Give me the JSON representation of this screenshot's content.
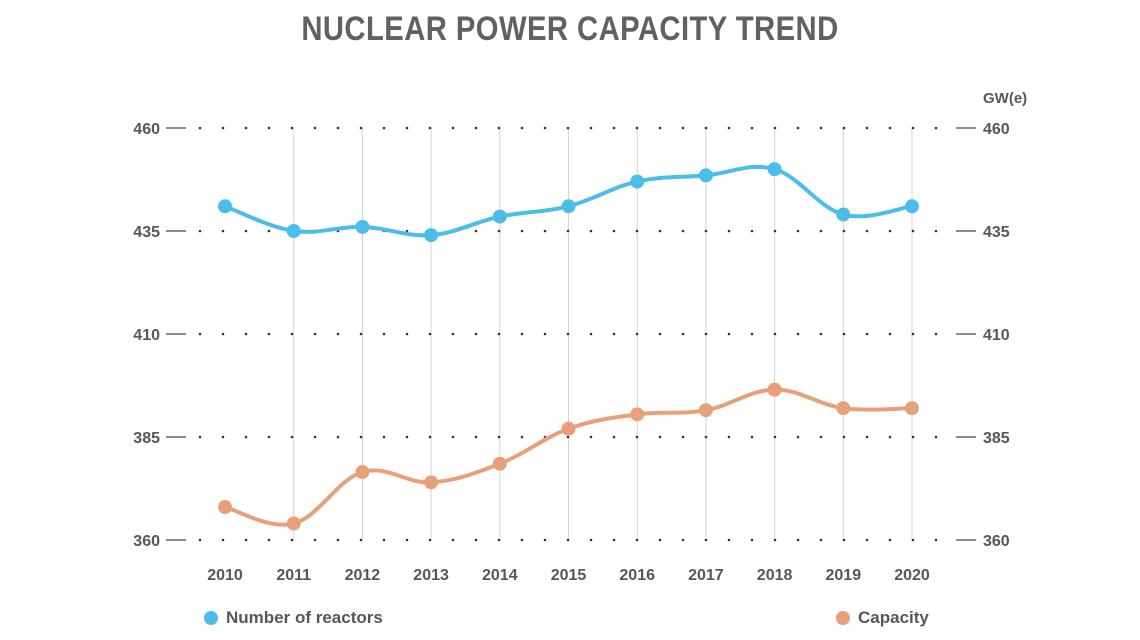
{
  "chart_data": {
    "type": "line",
    "title": "NUCLEAR POWER CAPACITY TREND",
    "categories": [
      "2010",
      "2011",
      "2012",
      "2013",
      "2014",
      "2015",
      "2016",
      "2017",
      "2018",
      "2019",
      "2020"
    ],
    "y_ticks": [
      "460",
      "435",
      "410",
      "385",
      "360"
    ],
    "y_ticks_right": [
      "460",
      "435",
      "410",
      "385",
      "360"
    ],
    "ylim": [
      360,
      460
    ],
    "y2_unit": "GW(e)",
    "series": [
      {
        "name": "Number of reactors",
        "color": "#4cbde9",
        "values": [
          441,
          435,
          436,
          434,
          438.5,
          441,
          447,
          448.5,
          450,
          439,
          441
        ]
      },
      {
        "name": "Capacity",
        "color": "#e8a07a",
        "values": [
          368,
          364,
          376.5,
          374,
          378.5,
          387,
          390.5,
          391.5,
          396.5,
          392,
          392
        ]
      }
    ]
  }
}
